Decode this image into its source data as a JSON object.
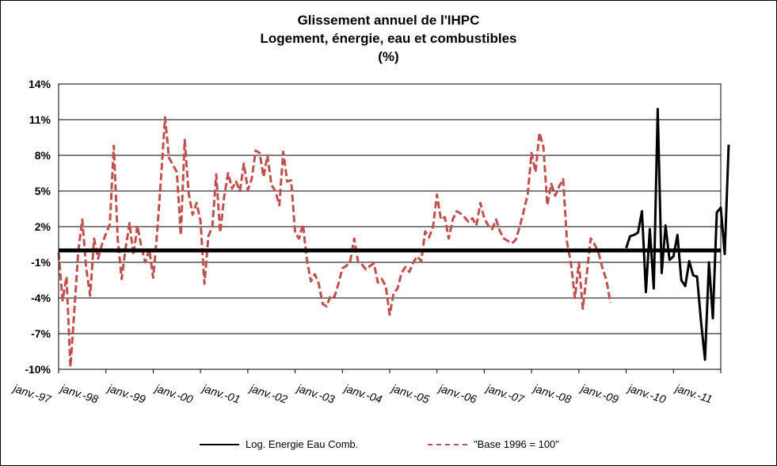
{
  "chart_data": {
    "type": "line",
    "title": "Glissement annuel de l'IHPC",
    "subtitle": "Logement, énergie, eau et combustibles",
    "unit_label": "(%)",
    "xlabel": "",
    "ylabel": "",
    "ylim": [
      -10,
      14
    ],
    "y_ticks": [
      {
        "value": 14,
        "label": "14%"
      },
      {
        "value": 11,
        "label": "11%"
      },
      {
        "value": 8,
        "label": "8%"
      },
      {
        "value": 5,
        "label": "5%"
      },
      {
        "value": 2,
        "label": "2%"
      },
      {
        "value": -1,
        "label": "-1%"
      },
      {
        "value": -4,
        "label": "-4%"
      },
      {
        "value": -7,
        "label": "-7%"
      },
      {
        "value": -10,
        "label": "-10%"
      }
    ],
    "x_ticks": [
      "janv.-97",
      "janv.-98",
      "janv.-99",
      "janv.-00",
      "janv.-01",
      "janv.-02",
      "janv.-03",
      "janv.-04",
      "janv.-05",
      "janv.-06",
      "janv.-07",
      "janv.-08",
      "janv.-09",
      "janv.-10",
      "janv.-11"
    ],
    "grid": true,
    "zero_line": 0,
    "legend_position": "bottom",
    "series": [
      {
        "name": "Log. Energie Eau Comb.",
        "color": "#000000",
        "style": "solid",
        "points": [
          [
            "2009-01",
            0.2
          ],
          [
            "2009-02",
            1.2
          ],
          [
            "2009-03",
            1.3
          ],
          [
            "2009-04",
            1.5
          ],
          [
            "2009-05",
            3.3
          ],
          [
            "2009-06",
            -3.5
          ],
          [
            "2009-07",
            1.8
          ],
          [
            "2009-08",
            -3.2
          ],
          [
            "2009-09",
            11.9
          ],
          [
            "2009-10",
            -1.9
          ],
          [
            "2009-11",
            2.1
          ],
          [
            "2009-12",
            -0.8
          ],
          [
            "2010-01",
            -0.5
          ],
          [
            "2010-02",
            1.3
          ],
          [
            "2010-03",
            -2.5
          ],
          [
            "2010-04",
            -3.0
          ],
          [
            "2010-05",
            -0.9
          ],
          [
            "2010-06",
            -2.1
          ],
          [
            "2010-07",
            -2.2
          ],
          [
            "2010-08",
            -6.0
          ],
          [
            "2010-09",
            -9.2
          ],
          [
            "2010-10",
            -1.0
          ],
          [
            "2010-11",
            -5.7
          ],
          [
            "2010-12",
            3.2
          ],
          [
            "2011-01",
            3.6
          ],
          [
            "2011-02",
            -0.3
          ],
          [
            "2011-03",
            8.9
          ]
        ]
      },
      {
        "name": "\"Base 1996 = 100\"",
        "color": "#c0504d",
        "style": "dashed",
        "points": [
          [
            "1997-01",
            -0.2
          ],
          [
            "1997-02",
            -4.2
          ],
          [
            "1997-03",
            -2.2
          ],
          [
            "1997-04",
            -9.8
          ],
          [
            "1997-05",
            -5.0
          ],
          [
            "1997-06",
            0.0
          ],
          [
            "1997-07",
            2.6
          ],
          [
            "1997-08",
            -1.5
          ],
          [
            "1997-09",
            -3.8
          ],
          [
            "1997-10",
            1.0
          ],
          [
            "1997-11",
            -0.7
          ],
          [
            "1997-12",
            0.5
          ],
          [
            "1998-01",
            1.4
          ],
          [
            "1998-02",
            2.2
          ],
          [
            "1998-03",
            8.8
          ],
          [
            "1998-04",
            1.0
          ],
          [
            "1998-05",
            -2.4
          ],
          [
            "1998-06",
            0.2
          ],
          [
            "1998-07",
            2.3
          ],
          [
            "1998-08",
            -0.4
          ],
          [
            "1998-09",
            2.1
          ],
          [
            "1998-10",
            0.3
          ],
          [
            "1998-11",
            -1.0
          ],
          [
            "1998-12",
            0.1
          ],
          [
            "1999-01",
            -2.3
          ],
          [
            "1999-02",
            1.5
          ],
          [
            "1999-03",
            6.2
          ],
          [
            "1999-04",
            11.2
          ],
          [
            "1999-05",
            7.8
          ],
          [
            "1999-06",
            7.2
          ],
          [
            "1999-07",
            6.6
          ],
          [
            "1999-08",
            1.3
          ],
          [
            "1999-09",
            9.3
          ],
          [
            "1999-10",
            4.8
          ],
          [
            "1999-11",
            3.0
          ],
          [
            "1999-12",
            4.0
          ],
          [
            "2000-01",
            2.5
          ],
          [
            "2000-02",
            -2.8
          ],
          [
            "2000-03",
            1.2
          ],
          [
            "2000-04",
            2.0
          ],
          [
            "2000-05",
            6.4
          ],
          [
            "2000-06",
            1.5
          ],
          [
            "2000-07",
            4.5
          ],
          [
            "2000-08",
            6.5
          ],
          [
            "2000-09",
            5.2
          ],
          [
            "2000-10",
            5.8
          ],
          [
            "2000-11",
            5.0
          ],
          [
            "2000-12",
            7.3
          ],
          [
            "2001-01",
            5.1
          ],
          [
            "2001-02",
            6.0
          ],
          [
            "2001-03",
            8.4
          ],
          [
            "2001-04",
            8.2
          ],
          [
            "2001-05",
            6.2
          ],
          [
            "2001-06",
            8.0
          ],
          [
            "2001-07",
            5.5
          ],
          [
            "2001-08",
            5.0
          ],
          [
            "2001-09",
            3.8
          ],
          [
            "2001-10",
            8.3
          ],
          [
            "2001-11",
            5.8
          ],
          [
            "2001-12",
            5.9
          ],
          [
            "2002-01",
            1.5
          ],
          [
            "2002-02",
            1.0
          ],
          [
            "2002-03",
            2.2
          ],
          [
            "2002-04",
            -0.8
          ],
          [
            "2002-05",
            -2.6
          ],
          [
            "2002-06",
            -2.0
          ],
          [
            "2002-07",
            -2.8
          ],
          [
            "2002-08",
            -4.5
          ],
          [
            "2002-09",
            -4.7
          ],
          [
            "2002-10",
            -3.8
          ],
          [
            "2002-11",
            -3.9
          ],
          [
            "2002-12",
            -2.8
          ],
          [
            "2003-01",
            -1.5
          ],
          [
            "2003-02",
            -1.3
          ],
          [
            "2003-03",
            -0.9
          ],
          [
            "2003-04",
            1.0
          ],
          [
            "2003-05",
            -1.0
          ],
          [
            "2003-06",
            -1.2
          ],
          [
            "2003-07",
            -1.6
          ],
          [
            "2003-08",
            -1.3
          ],
          [
            "2003-09",
            -1.1
          ],
          [
            "2003-10",
            -2.7
          ],
          [
            "2003-11",
            -2.4
          ],
          [
            "2003-12",
            -3.0
          ],
          [
            "2004-01",
            -5.4
          ],
          [
            "2004-02",
            -3.6
          ],
          [
            "2004-03",
            -3.2
          ],
          [
            "2004-04",
            -1.9
          ],
          [
            "2004-05",
            -1.4
          ],
          [
            "2004-06",
            -1.8
          ],
          [
            "2004-07",
            -1.0
          ],
          [
            "2004-08",
            -0.5
          ],
          [
            "2004-09",
            -0.9
          ],
          [
            "2004-10",
            1.6
          ],
          [
            "2004-11",
            1.1
          ],
          [
            "2004-12",
            2.0
          ],
          [
            "2005-01",
            4.7
          ],
          [
            "2005-02",
            2.6
          ],
          [
            "2005-03",
            2.8
          ],
          [
            "2005-04",
            1.0
          ],
          [
            "2005-05",
            2.6
          ],
          [
            "2005-06",
            3.3
          ],
          [
            "2005-07",
            3.1
          ],
          [
            "2005-08",
            2.8
          ],
          [
            "2005-09",
            2.4
          ],
          [
            "2005-10",
            2.7
          ],
          [
            "2005-11",
            2.1
          ],
          [
            "2005-12",
            4.0
          ],
          [
            "2006-01",
            2.7
          ],
          [
            "2006-02",
            2.1
          ],
          [
            "2006-03",
            1.8
          ],
          [
            "2006-04",
            2.6
          ],
          [
            "2006-05",
            1.6
          ],
          [
            "2006-06",
            1.0
          ],
          [
            "2006-07",
            0.8
          ],
          [
            "2006-08",
            0.6
          ],
          [
            "2006-09",
            0.9
          ],
          [
            "2006-10",
            2.0
          ],
          [
            "2006-11",
            3.3
          ],
          [
            "2006-12",
            4.7
          ],
          [
            "2007-01",
            8.2
          ],
          [
            "2007-02",
            6.6
          ],
          [
            "2007-03",
            9.9
          ],
          [
            "2007-04",
            8.7
          ],
          [
            "2007-05",
            3.8
          ],
          [
            "2007-06",
            5.6
          ],
          [
            "2007-07",
            4.6
          ],
          [
            "2007-08",
            5.4
          ],
          [
            "2007-09",
            6.0
          ],
          [
            "2007-10",
            0.7
          ],
          [
            "2007-11",
            -1.1
          ],
          [
            "2007-12",
            -4.0
          ],
          [
            "2008-01",
            -1.0
          ],
          [
            "2008-02",
            -4.9
          ],
          [
            "2008-03",
            -2.0
          ],
          [
            "2008-04",
            1.0
          ],
          [
            "2008-05",
            0.5
          ],
          [
            "2008-06",
            -0.2
          ],
          [
            "2008-07",
            -1.5
          ],
          [
            "2008-08",
            -2.5
          ],
          [
            "2008-09",
            -4.4
          ]
        ]
      }
    ]
  }
}
